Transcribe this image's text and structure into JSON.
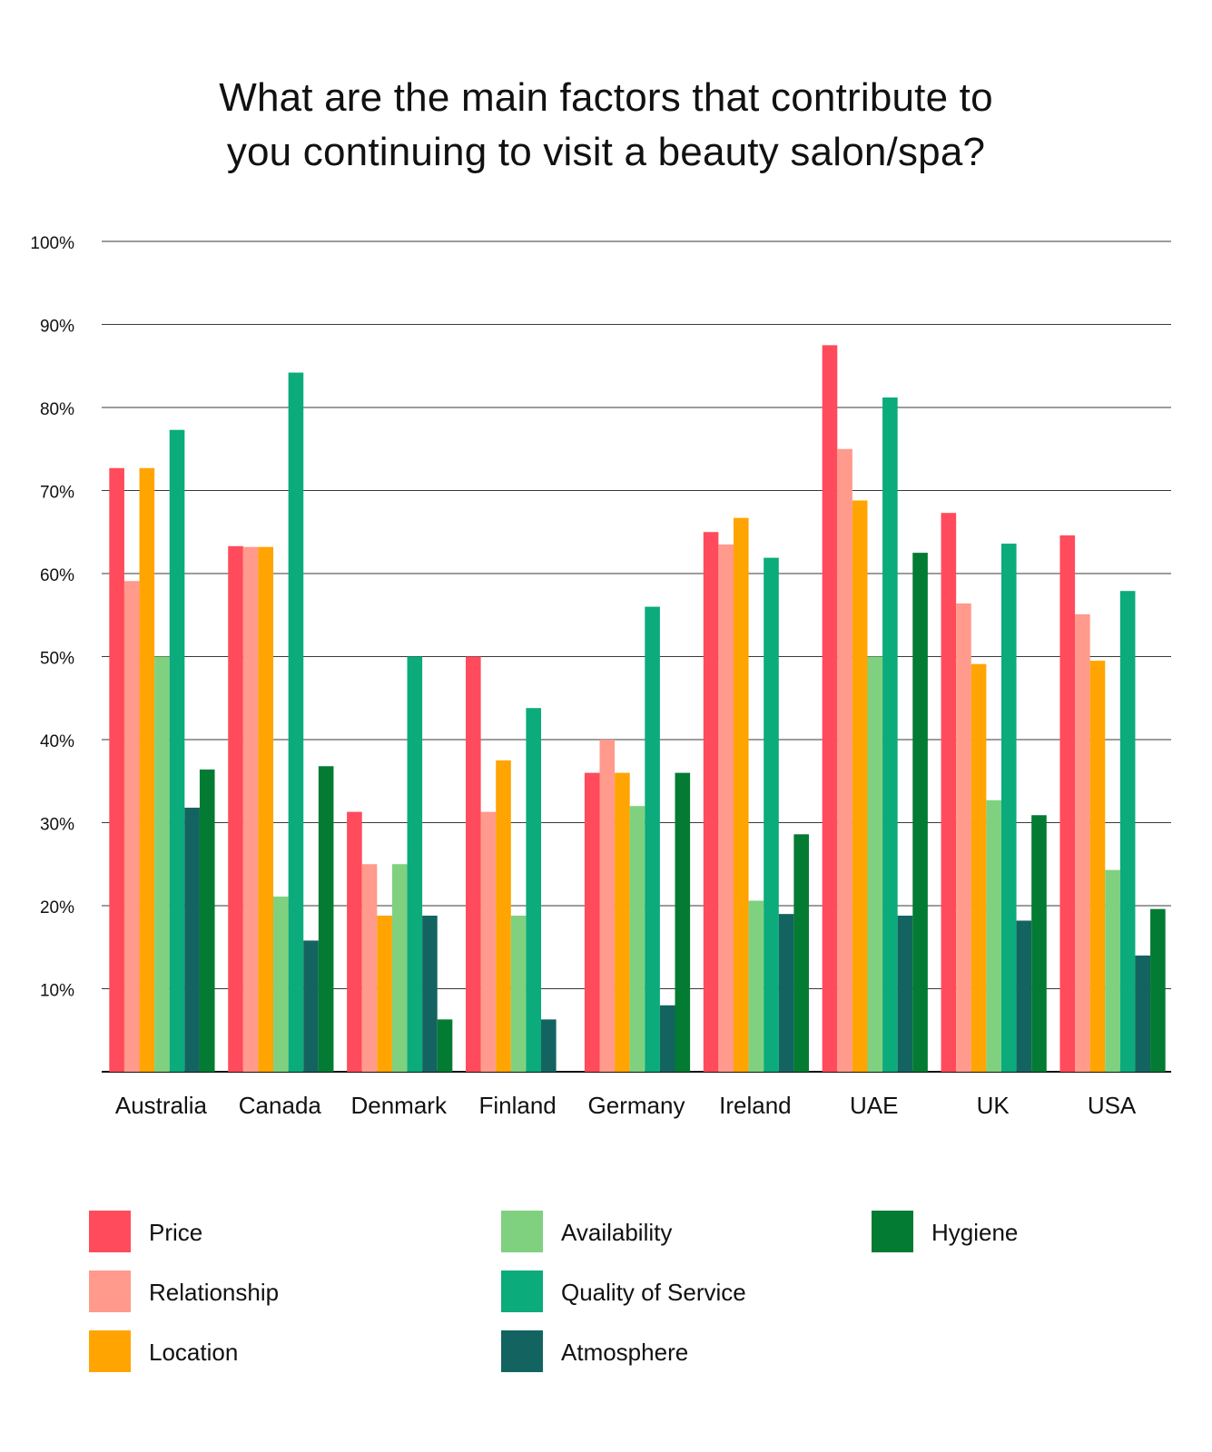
{
  "title": {
    "line1": "What are the main factors that contribute to",
    "line2": "you continuing to visit a beauty salon/spa?"
  },
  "chart_data": {
    "type": "bar",
    "title": "What are the main factors that contribute to you continuing to visit a beauty salon/spa?",
    "categories": [
      "Australia",
      "Canada",
      "Denmark",
      "Finland",
      "Germany",
      "Ireland",
      "UAE",
      "UK",
      "USA"
    ],
    "ylim": [
      0,
      100
    ],
    "y_ticks": [
      "10%",
      "20%",
      "30%",
      "40%",
      "50%",
      "60%",
      "70%",
      "80%",
      "90%",
      "100%"
    ],
    "grid": true,
    "legend_position": "bottom",
    "series": [
      {
        "name": "Price",
        "color": "#ff4b5c",
        "values": [
          72.7,
          63.3,
          31.3,
          50.0,
          36.0,
          65.0,
          87.5,
          67.3,
          64.6
        ]
      },
      {
        "name": "Relationship",
        "color": "#ff9a8c",
        "values": [
          59.1,
          63.2,
          25.0,
          31.3,
          40.0,
          63.5,
          75.0,
          56.4,
          55.1
        ]
      },
      {
        "name": "Location",
        "color": "#ffa400",
        "values": [
          72.7,
          63.2,
          18.8,
          37.5,
          36.0,
          66.7,
          68.8,
          49.1,
          49.5
        ]
      },
      {
        "name": "Availability",
        "color": "#7fd17f",
        "values": [
          50.0,
          21.1,
          25.0,
          18.8,
          32.0,
          20.6,
          50.0,
          32.7,
          24.3
        ]
      },
      {
        "name": "Quality of Service",
        "color": "#0bab7c",
        "values": [
          77.3,
          84.2,
          50.0,
          43.8,
          56.0,
          61.9,
          81.2,
          63.6,
          57.9
        ]
      },
      {
        "name": "Atmosphere",
        "color": "#136460",
        "values": [
          31.8,
          15.8,
          18.8,
          6.3,
          8.0,
          19.0,
          18.8,
          18.2,
          14.0
        ]
      },
      {
        "name": "Hygiene",
        "color": "#037b33",
        "values": [
          36.4,
          36.8,
          6.3,
          0,
          36.0,
          28.6,
          62.5,
          30.9,
          19.6
        ]
      }
    ]
  }
}
